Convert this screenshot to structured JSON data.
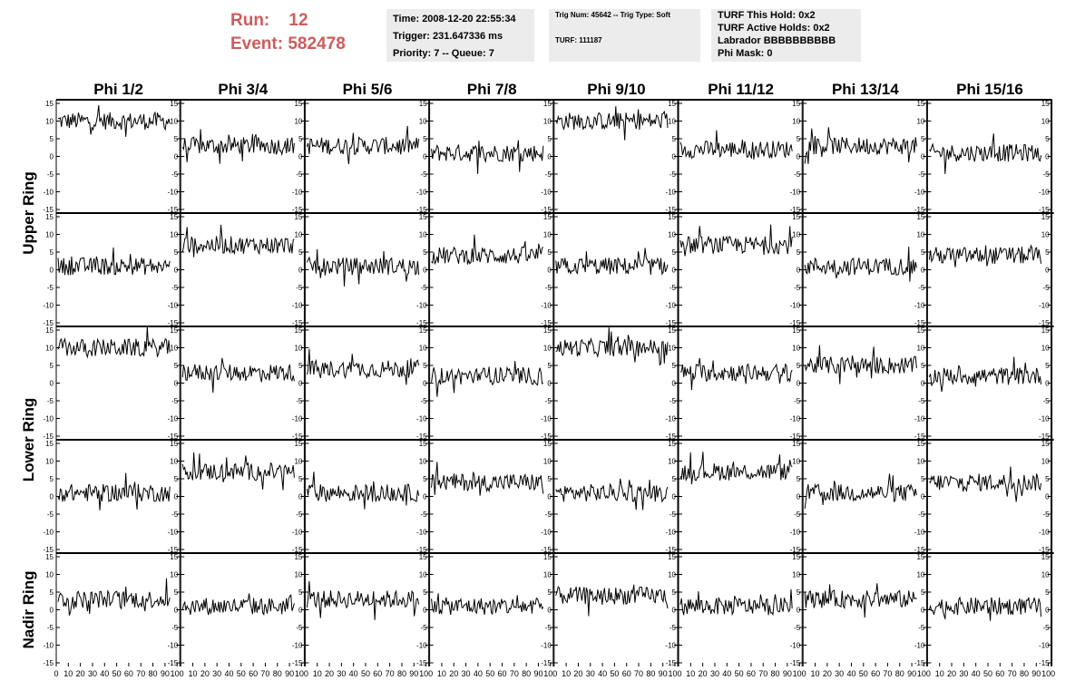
{
  "header": {
    "run_label": "Run:",
    "run_value": "12",
    "event_label": "Event:",
    "event_value": "582478",
    "time_line": "Time: 2008-12-20 22:55:34",
    "trigger_line": "Trigger: 231.647336 ms",
    "priority_line": "Priority: 7 -- Queue: 7",
    "trig_line": "Trig Num: 45642 -- Trig Type: Soft",
    "turf_line": "TURF: 111187",
    "turf_hold_line": "TURF This Hold: 0x2",
    "turf_active_line": "TURF Active Holds: 0x2",
    "labrador_line": "Labrador BBBBBBBBBB",
    "phi_mask_line": "Phi Mask: 0"
  },
  "colors": {
    "header_accent": "#cd5c5c",
    "info_box_bg": "#ececec",
    "trace": "#000000"
  },
  "chart_data": {
    "type": "line",
    "columns": [
      "Phi 1/2",
      "Phi 3/4",
      "Phi 5/6",
      "Phi 7/8",
      "Phi 9/10",
      "Phi 11/12",
      "Phi 13/14",
      "Phi 15/16"
    ],
    "row_groups": [
      {
        "label": "Upper Ring",
        "rows": [
          0,
          1
        ]
      },
      {
        "label": "Lower Ring",
        "rows": [
          2,
          3
        ]
      },
      {
        "label": "Nadir Ring",
        "rows": [
          4
        ]
      }
    ],
    "x_range": [
      0,
      100
    ],
    "y_range": [
      -15,
      15
    ],
    "y_ticks": [
      "15",
      "10",
      "5",
      "0",
      "-5",
      "-10",
      "-15"
    ],
    "x_ticks": [
      "0",
      "10",
      "20",
      "30",
      "40",
      "50",
      "60",
      "70",
      "80",
      "90",
      "100"
    ],
    "points_per_trace": 100,
    "noise_amplitude": 2.5,
    "baselines": [
      [
        10,
        3,
        3,
        1,
        10,
        2,
        3,
        1
      ],
      [
        1,
        7,
        1,
        4,
        1,
        7,
        1,
        4
      ],
      [
        10,
        3,
        4,
        2,
        10,
        3,
        5,
        2
      ],
      [
        1,
        7,
        1,
        4,
        1,
        7,
        1,
        4
      ],
      [
        3,
        1,
        3,
        1,
        4,
        1,
        3,
        1
      ]
    ]
  }
}
